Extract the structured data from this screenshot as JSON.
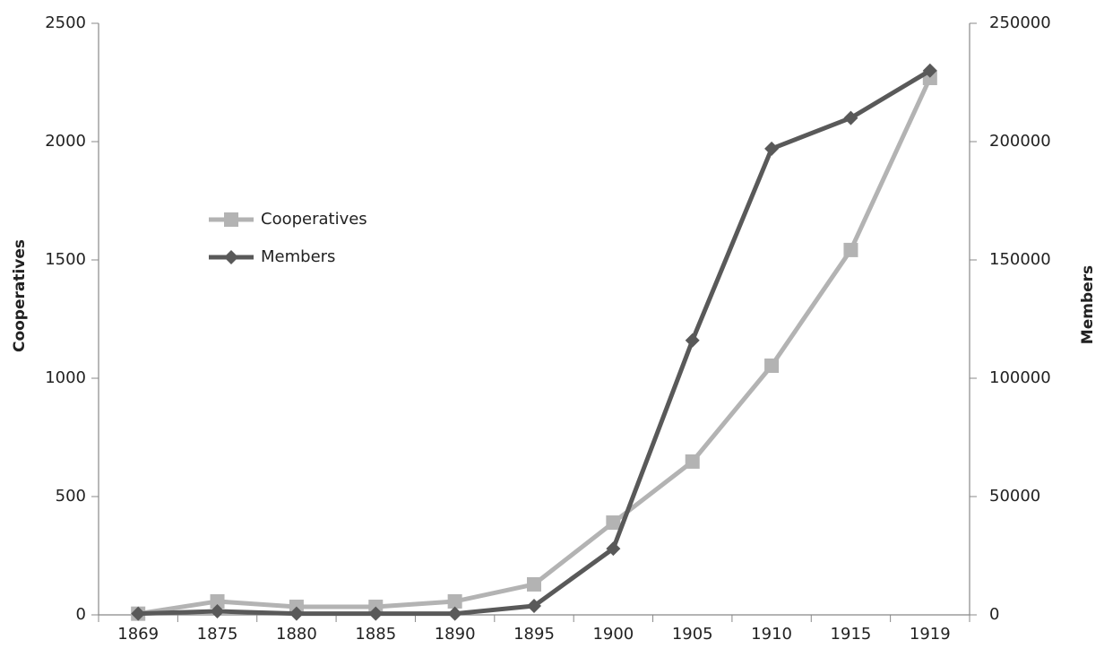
{
  "chart_data": {
    "type": "line",
    "categories": [
      "1869",
      "1875",
      "1880",
      "1885",
      "1890",
      "1895",
      "1900",
      "1905",
      "1910",
      "1915",
      "1919"
    ],
    "series": [
      {
        "name": "Cooperatives",
        "color": "#b3b3b3",
        "marker": "square",
        "axis": "y",
        "values": [
          5,
          57,
          34,
          34,
          57,
          129,
          390,
          648,
          1053,
          1542,
          2269
        ]
      },
      {
        "name": "Members",
        "color": "#595959",
        "marker": "diamond",
        "axis": "y2",
        "values": [
          500,
          1500,
          500,
          500,
          500,
          3800,
          28000,
          116000,
          197000,
          210000,
          230000
        ]
      }
    ],
    "ylabel": "Cooperatives",
    "y2label": "Members",
    "ylim": [
      0,
      2500
    ],
    "yticks": [
      0,
      500,
      1000,
      1500,
      2000,
      2500
    ],
    "y2lim": [
      0,
      250000
    ],
    "y2ticks": [
      0,
      50000,
      100000,
      150000,
      200000,
      250000
    ],
    "grid": false
  }
}
